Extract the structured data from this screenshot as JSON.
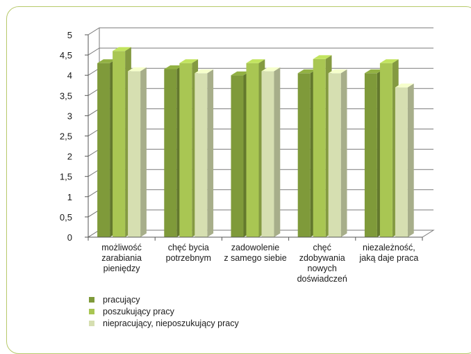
{
  "chart_data": {
    "type": "bar",
    "categories": [
      [
        "możliwość",
        "zarabiania",
        "pieniędzy"
      ],
      [
        "chęć bycia",
        "potrzebnym"
      ],
      [
        "zadowolenie",
        "z samego siebie"
      ],
      [
        "chęć",
        "zdobywania",
        "nowych",
        "doświadczeń"
      ],
      [
        "niezależność,",
        "jaką daje praca"
      ]
    ],
    "series": [
      {
        "name": "pracujący",
        "values": [
          4.3,
          4.15,
          4.0,
          4.05,
          4.05
        ],
        "color": "#7f9a3a"
      },
      {
        "name": "poszukujący pracy",
        "values": [
          4.6,
          4.3,
          4.3,
          4.4,
          4.3
        ],
        "color": "#a9c653"
      },
      {
        "name": "niepracujący, nieposzukujący pracy",
        "values": [
          4.1,
          4.05,
          4.1,
          4.05,
          3.7
        ],
        "color": "#d6dfb1"
      }
    ],
    "yticks": [
      "0",
      "0,5",
      "1",
      "1,5",
      "2",
      "2,5",
      "3",
      "3,5",
      "4",
      "4,5",
      "5"
    ],
    "ylim": [
      0,
      5
    ],
    "grid": true,
    "legend": "bottom-left",
    "title": "",
    "xlabel": "",
    "ylabel": ""
  }
}
